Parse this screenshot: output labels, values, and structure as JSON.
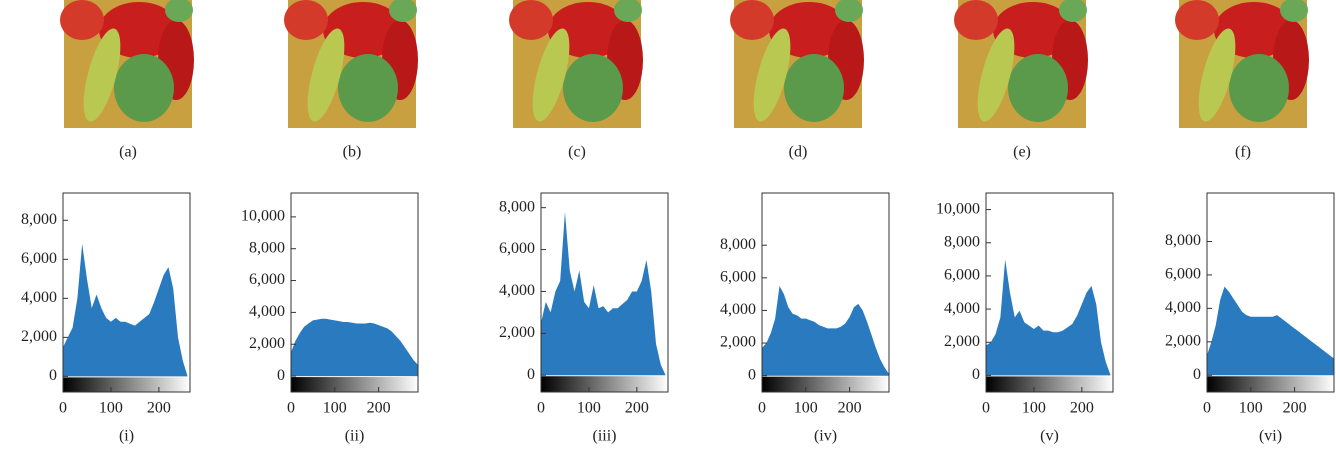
{
  "images": [
    {
      "label": "(a)"
    },
    {
      "label": "(b)"
    },
    {
      "label": "(c)"
    },
    {
      "label": "(d)"
    },
    {
      "label": "(e)"
    },
    {
      "label": "(f)"
    }
  ],
  "chart_data": [
    {
      "type": "area",
      "caption": "(i)",
      "color": "#2a7abf",
      "xlim": [
        0,
        265
      ],
      "xticks": [
        0,
        100,
        200
      ],
      "ylim": [
        -800,
        9400
      ],
      "yticks": [
        0,
        {
          "value": 2000,
          "label": "2,000"
        },
        {
          "value": 4000,
          "label": "4,000"
        },
        {
          "value": 6000,
          "label": "6,000"
        },
        {
          "value": 8000,
          "label": "8,000"
        }
      ],
      "x": [
        0,
        10,
        20,
        30,
        40,
        50,
        60,
        70,
        80,
        90,
        100,
        110,
        120,
        130,
        140,
        150,
        160,
        170,
        180,
        190,
        200,
        210,
        220,
        230,
        240,
        250,
        260
      ],
      "values": [
        1500,
        2000,
        2500,
        4000,
        6800,
        5000,
        3500,
        4200,
        3500,
        3000,
        2800,
        3000,
        2800,
        2800,
        2700,
        2600,
        2800,
        3000,
        3200,
        3800,
        4500,
        5200,
        5600,
        4500,
        2000,
        800,
        0
      ]
    },
    {
      "type": "area",
      "caption": "(ii)",
      "color": "#2a7abf",
      "xlim": [
        0,
        290
      ],
      "xticks": [
        0,
        100,
        200
      ],
      "ylim": [
        -1000,
        11500
      ],
      "yticks": [
        0,
        {
          "value": 2000,
          "label": "2,000"
        },
        {
          "value": 4000,
          "label": "4,000"
        },
        {
          "value": 6000,
          "label": "6,000"
        },
        {
          "value": 8000,
          "label": "8,000"
        },
        {
          "value": 10000,
          "label": "10,000"
        }
      ],
      "x": [
        0,
        10,
        20,
        30,
        40,
        50,
        60,
        70,
        80,
        90,
        100,
        110,
        120,
        130,
        140,
        150,
        160,
        170,
        180,
        190,
        200,
        210,
        220,
        230,
        240,
        250,
        260,
        270,
        280,
        290
      ],
      "values": [
        1500,
        2200,
        2700,
        3100,
        3300,
        3500,
        3550,
        3600,
        3600,
        3550,
        3500,
        3450,
        3400,
        3400,
        3350,
        3300,
        3300,
        3300,
        3350,
        3300,
        3200,
        3100,
        3000,
        2800,
        2500,
        2200,
        1800,
        1400,
        1000,
        700
      ]
    },
    {
      "type": "area",
      "caption": "(iii)",
      "color": "#2a7abf",
      "xlim": [
        0,
        265
      ],
      "xticks": [
        0,
        100,
        200
      ],
      "ylim": [
        -800,
        8700
      ],
      "yticks": [
        0,
        {
          "value": 2000,
          "label": "2,000"
        },
        {
          "value": 4000,
          "label": "4,000"
        },
        {
          "value": 6000,
          "label": "6,000"
        },
        {
          "value": 8000,
          "label": "8,000"
        }
      ],
      "x": [
        0,
        10,
        20,
        30,
        40,
        50,
        60,
        70,
        80,
        90,
        100,
        110,
        120,
        130,
        140,
        150,
        160,
        170,
        180,
        190,
        200,
        210,
        220,
        230,
        240,
        250,
        260
      ],
      "values": [
        2500,
        3500,
        3000,
        4000,
        4500,
        7800,
        5000,
        4000,
        5000,
        3500,
        3200,
        4300,
        3200,
        3300,
        3000,
        3200,
        3200,
        3400,
        3600,
        4000,
        4000,
        4500,
        5500,
        4000,
        1500,
        500,
        0
      ]
    },
    {
      "type": "area",
      "caption": "(iv)",
      "color": "#2a7abf",
      "xlim": [
        0,
        290
      ],
      "xticks": [
        0,
        100,
        200
      ],
      "ylim": [
        -1000,
        11200
      ],
      "yticks": [
        0,
        {
          "value": 2000,
          "label": "2,000"
        },
        {
          "value": 4000,
          "label": "4,000"
        },
        {
          "value": 6000,
          "label": "6,000"
        },
        {
          "value": 8000,
          "label": "8,000"
        }
      ],
      "x": [
        0,
        10,
        20,
        30,
        40,
        50,
        60,
        70,
        80,
        90,
        100,
        110,
        120,
        130,
        140,
        150,
        160,
        170,
        180,
        190,
        200,
        210,
        220,
        230,
        240,
        250,
        260,
        270,
        280,
        290
      ],
      "values": [
        1700,
        2000,
        2600,
        3500,
        5500,
        5000,
        4200,
        3800,
        3700,
        3500,
        3500,
        3400,
        3300,
        3100,
        3000,
        2900,
        2900,
        2900,
        3000,
        3200,
        3600,
        4200,
        4400,
        4000,
        3300,
        2500,
        1700,
        1000,
        500,
        100
      ]
    },
    {
      "type": "area",
      "caption": "(v)",
      "color": "#2a7abf",
      "xlim": [
        0,
        265
      ],
      "xticks": [
        0,
        100,
        200
      ],
      "ylim": [
        -1000,
        11000
      ],
      "yticks": [
        0,
        {
          "value": 2000,
          "label": "2,000"
        },
        {
          "value": 4000,
          "label": "4,000"
        },
        {
          "value": 6000,
          "label": "6,000"
        },
        {
          "value": 8000,
          "label": "8,000"
        },
        {
          "value": 10000,
          "label": "10,000"
        }
      ],
      "x": [
        0,
        10,
        20,
        30,
        40,
        50,
        60,
        70,
        80,
        90,
        100,
        110,
        120,
        130,
        140,
        150,
        160,
        170,
        180,
        190,
        200,
        210,
        220,
        230,
        240,
        250,
        260
      ],
      "values": [
        1800,
        2000,
        2500,
        3500,
        7000,
        5000,
        3500,
        3900,
        3200,
        3000,
        2800,
        3000,
        2700,
        2700,
        2600,
        2600,
        2700,
        2900,
        3100,
        3600,
        4300,
        5000,
        5400,
        4300,
        2000,
        800,
        0
      ]
    },
    {
      "type": "area",
      "caption": "(vi)",
      "color": "#2a7abf",
      "xlim": [
        0,
        290
      ],
      "xticks": [
        0,
        100,
        200
      ],
      "ylim": [
        -1000,
        10900
      ],
      "yticks": [
        0,
        {
          "value": 2000,
          "label": "2,000"
        },
        {
          "value": 4000,
          "label": "4,000"
        },
        {
          "value": 6000,
          "label": "6,000"
        },
        {
          "value": 8000,
          "label": "8,000"
        }
      ],
      "x": [
        0,
        10,
        20,
        30,
        40,
        50,
        60,
        70,
        80,
        90,
        100,
        110,
        120,
        130,
        140,
        150,
        160,
        170,
        180,
        190,
        200,
        210,
        220,
        230,
        240,
        250,
        260,
        270,
        280,
        290
      ],
      "values": [
        1200,
        2000,
        3000,
        4500,
        5300,
        5000,
        4600,
        4200,
        3800,
        3600,
        3500,
        3500,
        3500,
        3500,
        3500,
        3500,
        3600,
        3400,
        3200,
        3000,
        2800,
        2600,
        2400,
        2200,
        2000,
        1800,
        1600,
        1400,
        1200,
        1000
      ]
    }
  ]
}
